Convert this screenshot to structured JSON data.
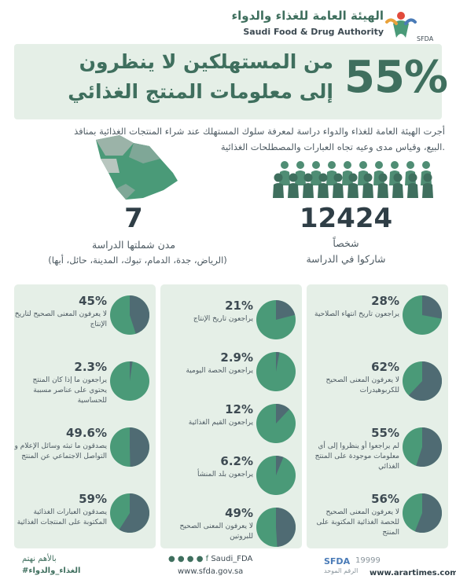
{
  "header": {
    "org_ar": "الهيئة العامة للغذاء والدواء",
    "org_en": "Saudi Food & Drug Authority",
    "logo_caption": "SFDA"
  },
  "banner": {
    "percent": "55%",
    "line1": "من المستهلكين لا ينظرون",
    "line2": "إلى معلومات المنتج الغذائي"
  },
  "intro": {
    "line1": "أجرت الهيئة العامة للغذاء والدواء دراسة لمعرفة سلوك المستهلك عند شراء المنتجات الغذائية بمنافذ",
    "line2": "البيع، وقياس مدى وعيه تجاه العبارات والمصطلحات الغذائية."
  },
  "stats": {
    "participants": {
      "number": "12424",
      "unit": "شخصاً",
      "label": "شاركوا في الدراسة"
    },
    "cities": {
      "number": "7",
      "label": "مدن شملتها الدراسة",
      "list": "(الرياض، جدة، الدمام، تبوك، المدينة، حائل، أبها)"
    }
  },
  "colors": {
    "accent": "#3f6f5e",
    "panel": "#e5efe7",
    "pie_fill": "#4f6b73",
    "pie_base": "#4a9a78"
  },
  "panels": {
    "right": [
      {
        "pct": "28%",
        "value": 28,
        "desc": "يراجعون تاريخ انتهاء الصلاحية"
      },
      {
        "pct": "62%",
        "value": 62,
        "desc": "لا يعرفون المعنى الصحيح للكربوهيدرات"
      },
      {
        "pct": "55%",
        "value": 55,
        "desc": "لم يراجعوا أو ينظروا إلى أي معلومات موجودة على المنتج الغذائي"
      },
      {
        "pct": "56%",
        "value": 56,
        "desc": "لا يعرفون المعنى الصحيح للحصة الغذائية المكتوبة على المنتج"
      }
    ],
    "middle": [
      {
        "pct": "21%",
        "value": 21,
        "desc": "يراجعون تاريخ الإنتاج"
      },
      {
        "pct": "2.9%",
        "value": 2.9,
        "desc": "يراجعون الحصة اليومية"
      },
      {
        "pct": "12%",
        "value": 12,
        "desc": "يراجعون القيم الغذائية"
      },
      {
        "pct": "6.2%",
        "value": 6.2,
        "desc": "يراجعون بلد المنشأ"
      },
      {
        "pct": "49%",
        "value": 49,
        "desc": "لا يعرفون المعنى الصحيح للبروتين"
      }
    ],
    "left": [
      {
        "pct": "45%",
        "value": 45,
        "desc": "لا يعرفون المعنى الصحيح لتاريخ الإنتاج"
      },
      {
        "pct": "2.3%",
        "value": 2.3,
        "desc": "يراجعون ما إذا كان المنتج يحتوي على عناصر مسببة للحساسية"
      },
      {
        "pct": "49.6%",
        "value": 49.6,
        "desc": "يصدقون ما تبثه وسائل الإعلام و التواصل الاجتماعي عن المنتج"
      },
      {
        "pct": "59%",
        "value": 59,
        "desc": "يصدقون العبارات الغذائية المكتوبة على المنتجات الغذائية"
      }
    ]
  },
  "footer": {
    "slogan1": "بالأهم نهتم",
    "slogan2": "#الغذاء_والدواء",
    "social": "Saudi_FDA",
    "website": "www.sfda.gov.sa",
    "brand": "SFDA",
    "year": "19999",
    "brand_sub": "الرقم الموحد",
    "watermark": "www.arartimes.com"
  }
}
